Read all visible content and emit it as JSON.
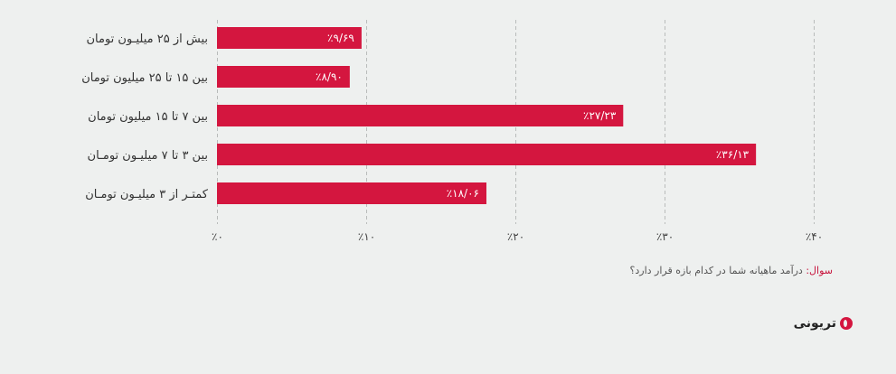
{
  "chart_data": {
    "type": "bar",
    "orientation": "horizontal",
    "categories": [
      "بیش از ۲۵ میلیـون تومان",
      "بین ۱۵ تا ۲۵ میلیون تومان",
      "بین ۷ تا ۱۵ میلیون تومان",
      "بین ۳ تا ۷ میلیـون تومـان",
      "کمتـر از ۳ میلیـون تومـان"
    ],
    "values": [
      9.69,
      8.9,
      27.23,
      36.13,
      18.06
    ],
    "value_labels": [
      "٪۹/۶۹",
      "٪۸/۹۰",
      "٪۲۷/۲۳",
      "٪۳۶/۱۳",
      "٪۱۸/۰۶"
    ],
    "xlim": [
      0,
      40
    ],
    "ticks": [
      0,
      10,
      20,
      30,
      40
    ],
    "tick_labels": [
      "٪۰",
      "٪۱۰",
      "٪۲۰",
      "٪۳۰",
      "٪۴۰"
    ],
    "grid": true,
    "bar_color": "#d4163f",
    "title": "",
    "xlabel": "",
    "ylabel": ""
  },
  "footer": {
    "question_prefix": "سوال:",
    "question_text": " درآمد ماهیانه شما در کدام بازه قرار دارد؟",
    "logo_text": "تریونی",
    "accent_color": "#c8173f"
  }
}
